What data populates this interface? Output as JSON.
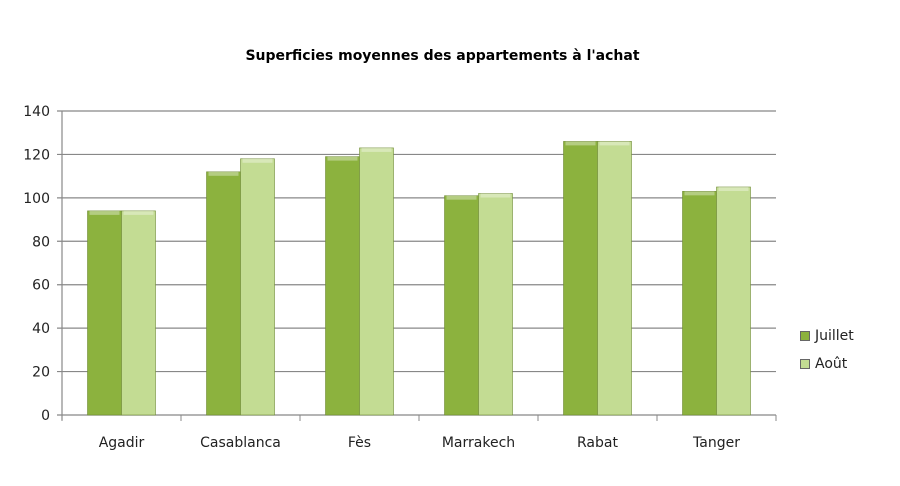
{
  "chart_data": {
    "type": "bar",
    "title": "Superficies moyennes des appartements à l'achat",
    "categories": [
      "Agadir",
      "Casablanca",
      "Fès",
      "Marrakech",
      "Rabat",
      "Tanger"
    ],
    "series": [
      {
        "name": "Juillet",
        "values": [
          94,
          112,
          119,
          101,
          126,
          103
        ],
        "color": "#8cb23e"
      },
      {
        "name": "Août",
        "values": [
          94,
          118,
          123,
          102,
          126,
          105
        ],
        "color": "#c3dc93"
      }
    ],
    "ylim": [
      0,
      140
    ],
    "yticks": [
      0,
      20,
      40,
      60,
      80,
      100,
      120,
      140
    ],
    "grid": true,
    "legend": "right",
    "xlabel": "",
    "ylabel": ""
  }
}
